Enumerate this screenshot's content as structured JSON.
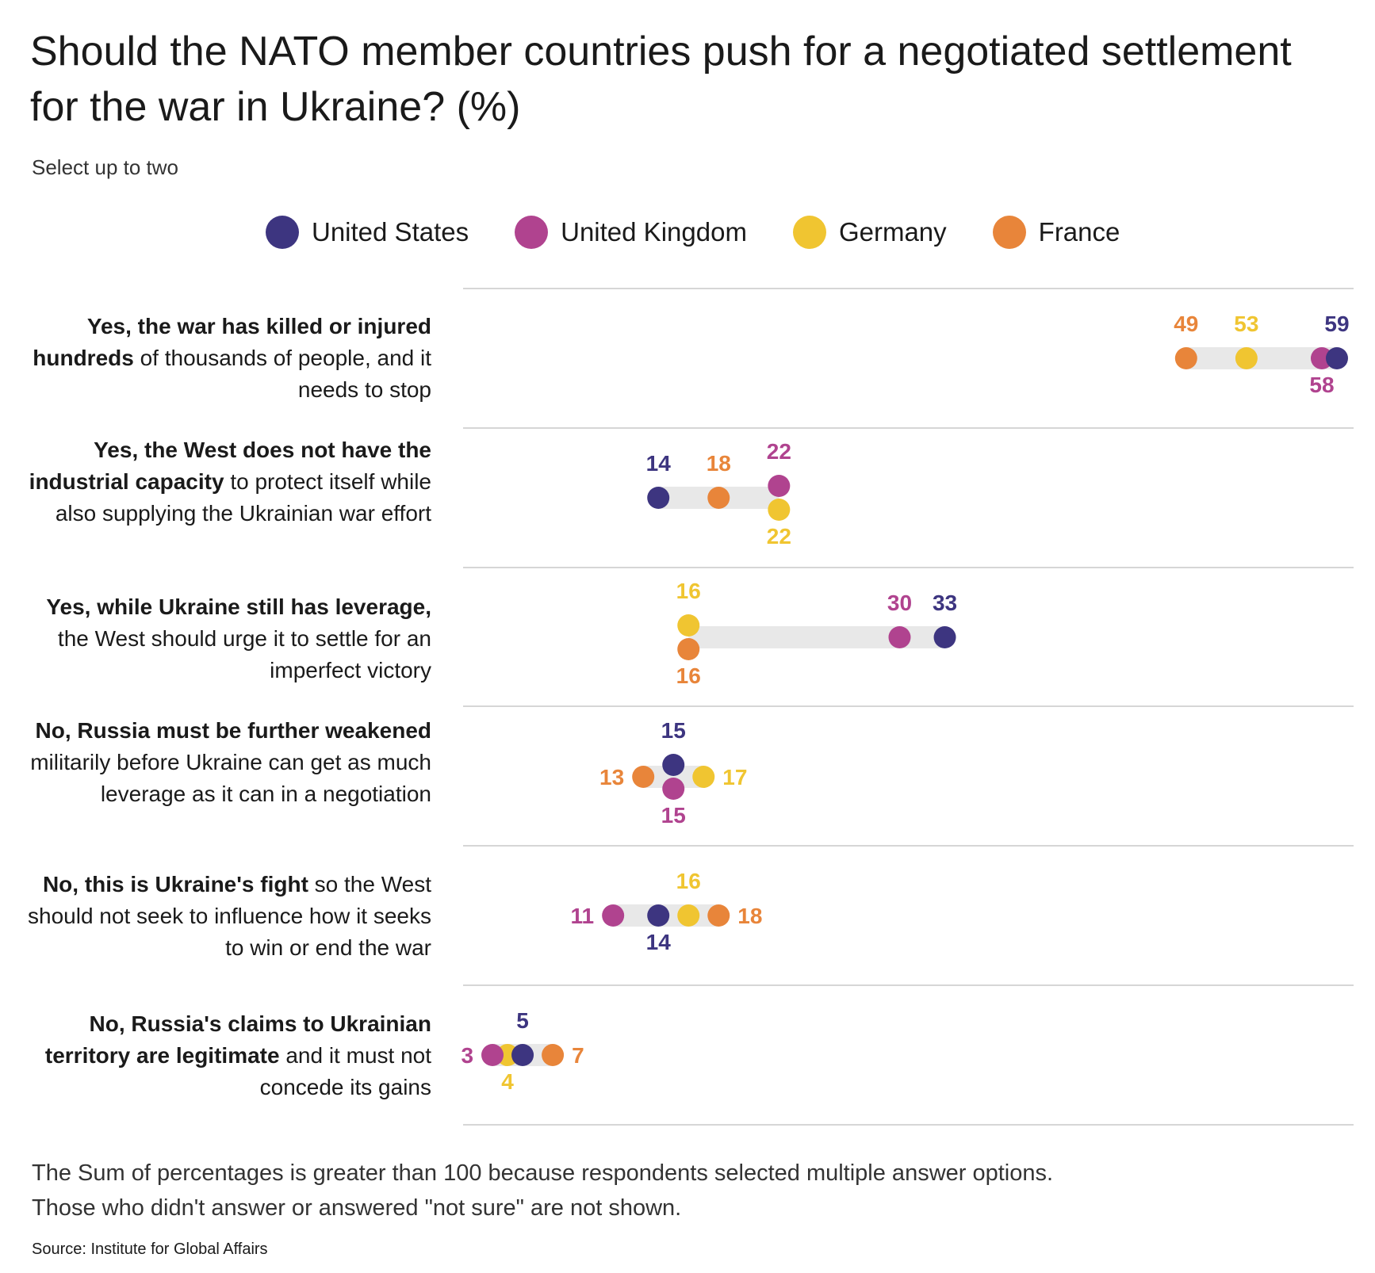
{
  "title": "Should the NATO member countries push for a negotiated settlement for the war in Ukraine? (%)",
  "subtitle": "Select up to two",
  "legend": [
    {
      "label": "United States",
      "color": "#3d3580"
    },
    {
      "label": "United Kingdom",
      "color": "#b0438f"
    },
    {
      "label": "Germany",
      "color": "#f0c531"
    },
    {
      "label": "France",
      "color": "#e8853a"
    }
  ],
  "questions": [
    {
      "bold": "Yes, the war has killed or injured hundreds",
      "rest": " of thousands of people, and it needs to stop"
    },
    {
      "bold": "Yes, the West does not have the industrial capacity",
      "rest": " to protect itself while also supplying the Ukrainian war effort"
    },
    {
      "bold": "Yes, while Ukraine still has leverage,",
      "rest": " the West should urge it to settle for an imperfect victory"
    },
    {
      "bold": "No, Russia must be further weakened",
      "rest": " militarily before Ukraine can get as  much leverage as it can in a negotiation"
    },
    {
      "bold": "No, this is Ukraine's fight",
      "rest": " so the West should not seek to influence how it seeks to win or end the war"
    },
    {
      "bold": "No, Russia's claims to Ukrainian territory are legitimate",
      "rest": " and it must not concede its gains"
    }
  ],
  "chart_data": {
    "type": "scatter",
    "title": "Should the NATO member countries push for a negotiated settlement for the war in Ukraine? (%)",
    "subtitle": "Select up to two",
    "categories": [
      "Yes, the war has killed or injured hundreds of thousands of people, and it needs to stop",
      "Yes, the West does not have the industrial capacity to protect itself while also supplying the Ukrainian war effort",
      "Yes, while Ukraine still has leverage, the West should urge it to settle for an imperfect victory",
      "No, Russia must be further weakened militarily before Ukraine can get as  much leverage as it can in a negotiation",
      "No, this is Ukraine's fight so the West should not seek to influence how it seeks to win or end the war",
      "No, Russia's claims to Ukrainian territory are legitimate and it must not concede its gains"
    ],
    "series": [
      {
        "name": "United States",
        "color": "#3d3580",
        "values": [
          59,
          14,
          33,
          15,
          14,
          5
        ]
      },
      {
        "name": "United Kingdom",
        "color": "#b0438f",
        "values": [
          58,
          22,
          30,
          15,
          11,
          3
        ]
      },
      {
        "name": "Germany",
        "color": "#f0c531",
        "values": [
          53,
          22,
          16,
          17,
          16,
          4
        ]
      },
      {
        "name": "France",
        "color": "#e8853a",
        "values": [
          49,
          18,
          16,
          13,
          18,
          7
        ]
      }
    ],
    "xlim": [
      2,
      60
    ],
    "grid": false,
    "legend_position": "top"
  },
  "footnote": [
    "The Sum of percentages is greater than  100 because respondents selected multiple answer options.",
    "Those who didn't answer or answered \"not sure\" are not shown."
  ],
  "source": "Source: Institute for Global Affairs"
}
